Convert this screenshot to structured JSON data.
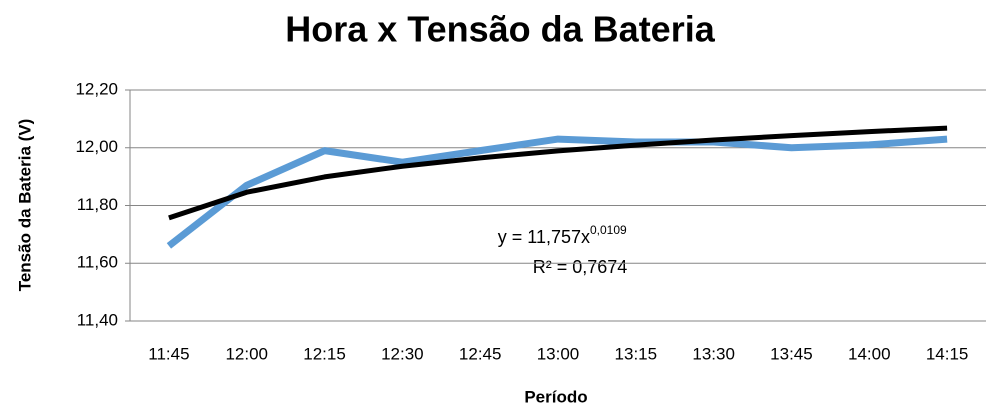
{
  "chart_data": {
    "type": "line",
    "title": "Hora x Tensão da Bateria",
    "x_label": "Período",
    "y_label": "Tensão da Bateria (V)",
    "categories": [
      "11:45",
      "12:00",
      "12:15",
      "12:30",
      "12:45",
      "13:00",
      "13:15",
      "13:30",
      "13:45",
      "14:00",
      "14:15"
    ],
    "series": [
      {
        "color": "#5b9bd5",
        "values": [
          11.66,
          11.87,
          11.99,
          11.95,
          11.99,
          12.03,
          12.02,
          12.02,
          12.0,
          12.01,
          12.03
        ]
      },
      {
        "color": "#000000",
        "values": [
          11.757,
          11.846,
          11.899,
          11.936,
          11.965,
          11.989,
          12.009,
          12.027,
          12.042,
          12.056,
          12.068
        ]
      }
    ],
    "annotation": {
      "equation": "y = 11,757x",
      "exponent": "0,0109",
      "r_squared": "R² = 0,7674"
    },
    "ylim": [
      11.4,
      12.2
    ],
    "yticks": [
      {
        "value": 11.4,
        "label": "11,40"
      },
      {
        "value": 11.6,
        "label": "11,60"
      },
      {
        "value": 11.8,
        "label": "11,80"
      },
      {
        "value": 12.0,
        "label": "12,00"
      },
      {
        "value": 12.2,
        "label": "12,20"
      }
    ],
    "grid": true
  }
}
